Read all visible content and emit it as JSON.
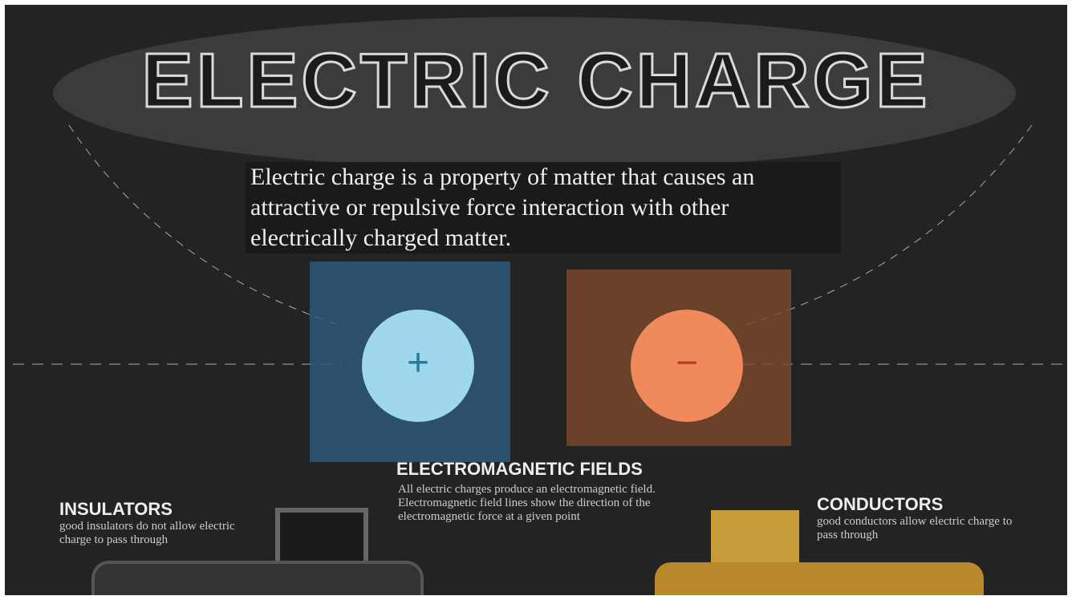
{
  "header": {
    "title": "ELECTRIC CHARGE"
  },
  "intro": "Electric charge is a property of matter that causes an attractive or repulsive force interaction with other electrically charged matter.",
  "charges": {
    "positive": "+",
    "negative": "−"
  },
  "sections": [
    {
      "title": "ELECTROMAGNETIC FIELDS",
      "text": "All electric charges produce an electromagnetic field. Electromagnetic field lines show the direction of the electromagnetic force at a given point"
    },
    {
      "title": "INSULATORS",
      "text": "good insulators do not allow electric charge to pass through"
    },
    {
      "title": "CONDUCTORS",
      "text": "good conductors allow electric charge to pass through"
    }
  ]
}
